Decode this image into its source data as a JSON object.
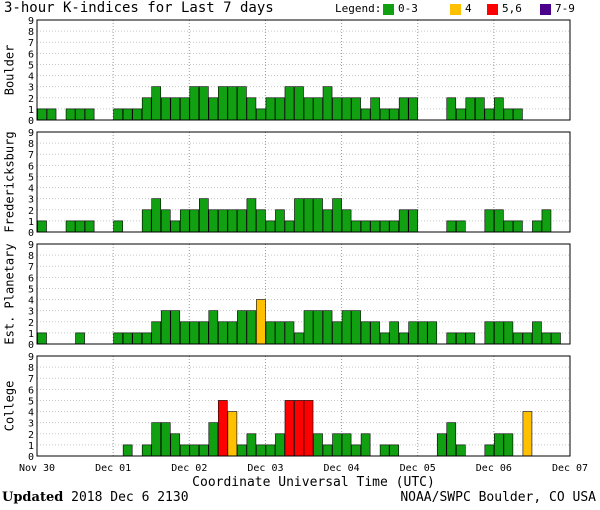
{
  "title": "3-hour K-indices for Last 7 days",
  "legend": {
    "label": "Legend:",
    "items": [
      {
        "label": "0-3",
        "color": "#11a011"
      },
      {
        "label": "4",
        "color": "#ffc000"
      },
      {
        "label": "5,6",
        "color": "#ff0000"
      },
      {
        "label": "7-9",
        "color": "#4a008a"
      }
    ]
  },
  "footer": {
    "updated_label": "Updated",
    "updated_value": "2018 Dec  6 2130",
    "source": "NOAA/SWPC Boulder, CO USA"
  },
  "chart_data": {
    "type": "bar",
    "xlabel": "Coordinate Universal Time (UTC)",
    "x_ticks": [
      "Nov 30",
      "Dec 01",
      "Dec 02",
      "Dec 03",
      "Dec 04",
      "Dec 05",
      "Dec 06",
      "Dec 07"
    ],
    "ylim": [
      0,
      9
    ],
    "y_ticks": [
      "0",
      "1",
      "2",
      "3",
      "4",
      "5",
      "6",
      "7",
      "8",
      "9"
    ],
    "grid": true,
    "series": [
      {
        "name": "Boulder",
        "values": [
          1,
          1,
          0,
          1,
          1,
          1,
          0,
          0,
          1,
          1,
          1,
          2,
          3,
          2,
          2,
          2,
          3,
          3,
          2,
          3,
          3,
          3,
          2,
          1,
          2,
          2,
          3,
          3,
          2,
          2,
          3,
          2,
          2,
          2,
          1,
          2,
          1,
          1,
          2,
          2,
          0,
          0,
          0,
          2,
          1,
          2,
          2,
          1,
          2,
          1,
          1,
          0,
          0,
          0,
          0,
          0
        ]
      },
      {
        "name": "Fredericksburg",
        "values": [
          1,
          0,
          0,
          1,
          1,
          1,
          0,
          0,
          1,
          0,
          0,
          2,
          3,
          2,
          1,
          2,
          2,
          3,
          2,
          2,
          2,
          2,
          3,
          2,
          1,
          2,
          1,
          3,
          3,
          3,
          2,
          3,
          2,
          1,
          1,
          1,
          1,
          1,
          2,
          2,
          0,
          0,
          0,
          1,
          1,
          0,
          0,
          2,
          2,
          1,
          1,
          0,
          1,
          2,
          0,
          0
        ]
      },
      {
        "name": "Est. Planetary",
        "values": [
          1,
          0,
          0,
          0,
          1,
          0,
          0,
          0,
          1,
          1,
          1,
          1,
          2,
          3,
          3,
          2,
          2,
          2,
          3,
          2,
          2,
          3,
          3,
          4,
          2,
          2,
          2,
          1,
          3,
          3,
          3,
          2,
          3,
          3,
          2,
          2,
          1,
          2,
          1,
          2,
          2,
          2,
          0,
          1,
          1,
          1,
          0,
          2,
          2,
          2,
          1,
          1,
          2,
          1,
          1,
          0
        ]
      },
      {
        "name": "College",
        "values": [
          0,
          0,
          0,
          0,
          0,
          0,
          0,
          0,
          0,
          1,
          0,
          1,
          3,
          3,
          2,
          1,
          1,
          1,
          3,
          5,
          4,
          1,
          2,
          1,
          1,
          2,
          5,
          5,
          5,
          2,
          1,
          2,
          2,
          1,
          2,
          0,
          1,
          1,
          0,
          0,
          0,
          0,
          2,
          3,
          1,
          0,
          0,
          1,
          2,
          2,
          0,
          4,
          0,
          0,
          0,
          0
        ]
      }
    ]
  }
}
